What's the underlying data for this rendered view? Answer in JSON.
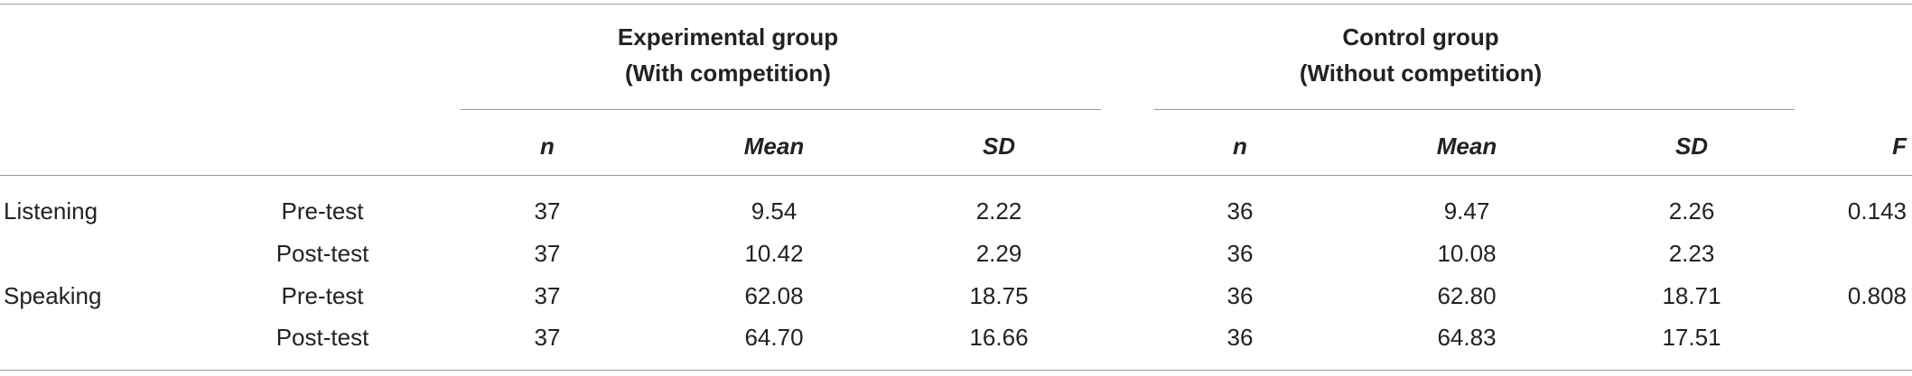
{
  "groups": {
    "experimental": {
      "line1": "Experimental group",
      "line2": "(With competition)"
    },
    "control": {
      "line1": "Control group",
      "line2": "(Without competition)"
    }
  },
  "columns": {
    "exp_n": "n",
    "exp_mean": "Mean",
    "exp_sd": "SD",
    "ctl_n": "n",
    "ctl_mean": "Mean",
    "ctl_sd": "SD",
    "f": "F"
  },
  "rows": [
    {
      "skill": "Listening",
      "phase": "Pre-test",
      "exp_n": "37",
      "exp_mean": "9.54",
      "exp_sd": "2.22",
      "ctl_n": "36",
      "ctl_mean": "9.47",
      "ctl_sd": "2.26",
      "f": "0.143"
    },
    {
      "skill": "",
      "phase": "Post-test",
      "exp_n": "37",
      "exp_mean": "10.42",
      "exp_sd": "2.29",
      "ctl_n": "36",
      "ctl_mean": "10.08",
      "ctl_sd": "2.23",
      "f": ""
    },
    {
      "skill": "Speaking",
      "phase": "Pre-test",
      "exp_n": "37",
      "exp_mean": "62.08",
      "exp_sd": "18.75",
      "ctl_n": "36",
      "ctl_mean": "62.80",
      "ctl_sd": "18.71",
      "f": "0.808"
    },
    {
      "skill": "",
      "phase": "Post-test",
      "exp_n": "37",
      "exp_mean": "64.70",
      "exp_sd": "16.66",
      "ctl_n": "36",
      "ctl_mean": "64.83",
      "ctl_sd": "17.51",
      "f": ""
    }
  ]
}
